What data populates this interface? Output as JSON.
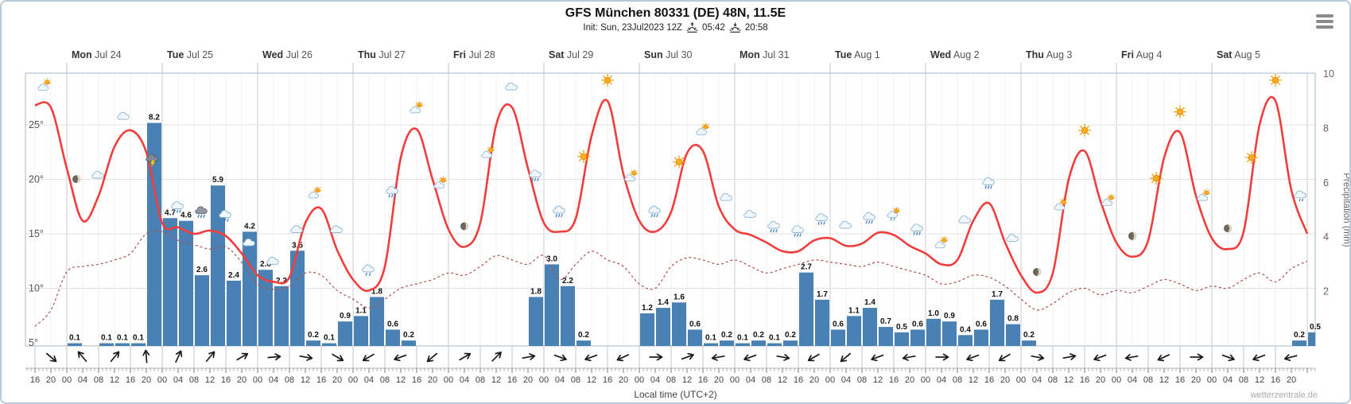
{
  "header": {
    "title": "GFS München 80331 (DE) 48N, 11.5E",
    "init": "Init: Sun, 23Jul2023 12Z",
    "sunrise": "05:42",
    "sunset": "20:58"
  },
  "footer": {
    "xlabel": "Local time (UTC+2)",
    "watermark": "wetterzentrale.de"
  },
  "axes": {
    "temp_ticks": [
      "25°",
      "20°",
      "15°",
      "10°",
      "5°"
    ],
    "precip_ticks": [
      "2",
      "4",
      "6",
      "8",
      "10"
    ],
    "precip_label": "Precipitation (mm)"
  },
  "chart_data": {
    "type": "meteogram line+bar",
    "title": "GFS München 80331 (DE) 48N, 11.5E",
    "x_start": "Jul 23 16:00",
    "x_step_hours": 4,
    "ylim_temp": [
      5,
      30
    ],
    "ylim_precip": [
      0,
      10
    ],
    "days": [
      {
        "name": "Mon",
        "date": "Jul 24"
      },
      {
        "name": "Tue",
        "date": "Jul 25"
      },
      {
        "name": "Wed",
        "date": "Jul 26"
      },
      {
        "name": "Thu",
        "date": "Jul 27"
      },
      {
        "name": "Fri",
        "date": "Jul 28"
      },
      {
        "name": "Sat",
        "date": "Jul 29"
      },
      {
        "name": "Sun",
        "date": "Jul 30"
      },
      {
        "name": "Mon",
        "date": "Jul 31"
      },
      {
        "name": "Tue",
        "date": "Aug 1"
      },
      {
        "name": "Wed",
        "date": "Aug 2"
      },
      {
        "name": "Thu",
        "date": "Aug 3"
      },
      {
        "name": "Fri",
        "date": "Aug 4"
      },
      {
        "name": "Sat",
        "date": "Aug 5"
      }
    ],
    "time_labels": [
      "16",
      "20",
      "00",
      "04",
      "08",
      "12",
      "16",
      "20",
      "00",
      "04",
      "08",
      "12",
      "16",
      "20",
      "00",
      "04",
      "08",
      "12",
      "16",
      "20",
      "00",
      "04",
      "08",
      "12",
      "16",
      "20",
      "00",
      "04",
      "08",
      "12",
      "16",
      "20",
      "00",
      "04",
      "08",
      "12",
      "16",
      "20",
      "00",
      "04",
      "08",
      "12",
      "16",
      "20",
      "00",
      "04",
      "08",
      "12",
      "16",
      "20",
      "00",
      "04",
      "08",
      "12",
      "16",
      "20",
      "00",
      "04",
      "08",
      "12",
      "16",
      "20",
      "00",
      "04",
      "08",
      "12",
      "16",
      "20",
      "00",
      "04",
      "08",
      "12",
      "16",
      "20",
      "00",
      "04",
      "08",
      "12",
      "16",
      "20"
    ],
    "temperature": [
      26.8,
      26.6,
      21.0,
      16.2,
      18.5,
      23.0,
      24.5,
      22.5,
      16.0,
      15.6,
      15.0,
      15.3,
      14.8,
      13.2,
      11.2,
      10.6,
      11.0,
      16.0,
      17.3,
      13.5,
      10.8,
      9.8,
      12.0,
      22.0,
      24.6,
      20.0,
      15.4,
      13.8,
      16.0,
      25.0,
      26.6,
      21.0,
      16.0,
      15.2,
      16.4,
      24.0,
      27.2,
      20.5,
      16.2,
      15.2,
      17.0,
      22.4,
      22.6,
      17.5,
      15.4,
      14.9,
      14.2,
      13.4,
      13.4,
      14.4,
      14.6,
      13.9,
      14.1,
      15.1,
      14.9,
      13.9,
      13.2,
      12.2,
      12.6,
      16.2,
      17.8,
      14.2,
      11.2,
      9.6,
      11.4,
      20.0,
      22.6,
      18.0,
      14.2,
      12.9,
      14.4,
      22.0,
      24.3,
      18.5,
      14.6,
      13.6,
      15.2,
      25.0,
      27.2,
      19.0,
      15.0
    ],
    "dewpoint": [
      6.5,
      8.0,
      11.5,
      12.0,
      12.2,
      12.6,
      13.2,
      15.0,
      15.2,
      14.4,
      14.0,
      13.6,
      13.8,
      12.4,
      10.4,
      9.9,
      10.2,
      11.4,
      11.2,
      9.8,
      9.0,
      8.2,
      9.0,
      10.0,
      10.4,
      10.8,
      11.4,
      11.2,
      12.0,
      13.0,
      12.6,
      12.2,
      13.0,
      10.8,
      12.2,
      13.4,
      12.6,
      12.0,
      10.4,
      10.0,
      12.0,
      12.8,
      12.6,
      12.2,
      12.6,
      12.0,
      11.4,
      11.8,
      12.2,
      12.6,
      12.4,
      12.2,
      12.0,
      12.4,
      12.0,
      11.6,
      11.2,
      10.4,
      10.6,
      11.2,
      11.0,
      10.2,
      9.0,
      8.0,
      8.6,
      9.6,
      10.0,
      9.4,
      9.8,
      9.6,
      10.2,
      10.8,
      10.4,
      9.8,
      10.2,
      10.0,
      10.8,
      11.4,
      10.6,
      11.8,
      12.5
    ],
    "precip_bars": [
      {
        "t": 2,
        "v": 0.1
      },
      {
        "t": 4,
        "v": 0.1
      },
      {
        "t": 5,
        "v": 0.1
      },
      {
        "t": 6,
        "v": 0.1
      },
      {
        "t": 7,
        "v": 8.2
      },
      {
        "t": 8,
        "v": 4.7
      },
      {
        "t": 9,
        "v": 4.6
      },
      {
        "t": 10,
        "v": 2.6
      },
      {
        "t": 11,
        "v": 5.9
      },
      {
        "t": 12,
        "v": 2.4
      },
      {
        "t": 13,
        "v": 4.2
      },
      {
        "t": 14,
        "v": 2.8
      },
      {
        "t": 15,
        "v": 2.2
      },
      {
        "t": 16,
        "v": 3.5
      },
      {
        "t": 17,
        "v": 0.2
      },
      {
        "t": 18,
        "v": 0.1
      },
      {
        "t": 19,
        "v": 0.9
      },
      {
        "t": 20,
        "v": 1.1
      },
      {
        "t": 21,
        "v": 1.8
      },
      {
        "t": 22,
        "v": 0.6
      },
      {
        "t": 23,
        "v": 0.2
      },
      {
        "t": 31,
        "v": 1.8
      },
      {
        "t": 32,
        "v": 3.0
      },
      {
        "t": 33,
        "v": 2.2
      },
      {
        "t": 34,
        "v": 0.2
      },
      {
        "t": 38,
        "v": 1.2
      },
      {
        "t": 39,
        "v": 1.4
      },
      {
        "t": 40,
        "v": 1.6
      },
      {
        "t": 41,
        "v": 0.6
      },
      {
        "t": 42,
        "v": 0.1
      },
      {
        "t": 43,
        "v": 0.2
      },
      {
        "t": 44,
        "v": 0.1
      },
      {
        "t": 45,
        "v": 0.2
      },
      {
        "t": 46,
        "v": 0.1
      },
      {
        "t": 47,
        "v": 0.2
      },
      {
        "t": 48,
        "v": 2.7
      },
      {
        "t": 49,
        "v": 1.7
      },
      {
        "t": 50,
        "v": 0.6
      },
      {
        "t": 51,
        "v": 1.1
      },
      {
        "t": 52,
        "v": 1.4
      },
      {
        "t": 53,
        "v": 0.7
      },
      {
        "t": 54,
        "v": 0.5
      },
      {
        "t": 55,
        "v": 0.6
      },
      {
        "t": 56,
        "v": 1.0
      },
      {
        "t": 57,
        "v": 0.9
      },
      {
        "t": 58,
        "v": 0.4
      },
      {
        "t": 59,
        "v": 0.6
      },
      {
        "t": 60,
        "v": 1.7
      },
      {
        "t": 61,
        "v": 0.8
      },
      {
        "t": 62,
        "v": 0.2
      },
      {
        "t": 79,
        "v": 0.2
      },
      {
        "t": 80,
        "v": 0.5
      }
    ],
    "icons": [
      {
        "t": 0.6,
        "type": "sun-cloud"
      },
      {
        "t": 2.6,
        "type": "moon"
      },
      {
        "t": 4,
        "type": "cloud"
      },
      {
        "t": 5.6,
        "type": "cloud"
      },
      {
        "t": 7.4,
        "type": "thunder"
      },
      {
        "t": 9,
        "type": "rain"
      },
      {
        "t": 10.5,
        "type": "heavy-rain"
      },
      {
        "t": 12,
        "type": "rain"
      },
      {
        "t": 13.5,
        "type": "rain"
      },
      {
        "t": 15,
        "type": "cloud"
      },
      {
        "t": 16.5,
        "type": "cloud"
      },
      {
        "t": 17.6,
        "type": "sun-cloud"
      },
      {
        "t": 19,
        "type": "cloud"
      },
      {
        "t": 21,
        "type": "rain-light"
      },
      {
        "t": 22.5,
        "type": "rain"
      },
      {
        "t": 24,
        "type": "sun-cloud"
      },
      {
        "t": 25.5,
        "type": "sun-cloud"
      },
      {
        "t": 27,
        "type": "moon"
      },
      {
        "t": 28.5,
        "type": "sun-cloud"
      },
      {
        "t": 30,
        "type": "cloud"
      },
      {
        "t": 31.5,
        "type": "rain"
      },
      {
        "t": 33,
        "type": "rain"
      },
      {
        "t": 34.5,
        "type": "sun"
      },
      {
        "t": 36,
        "type": "sun"
      },
      {
        "t": 37.5,
        "type": "sun-cloud"
      },
      {
        "t": 39,
        "type": "rain"
      },
      {
        "t": 40.5,
        "type": "sun"
      },
      {
        "t": 42,
        "type": "sun-cloud"
      },
      {
        "t": 43.5,
        "type": "cloud"
      },
      {
        "t": 45,
        "type": "cloud"
      },
      {
        "t": 46.5,
        "type": "rain"
      },
      {
        "t": 48,
        "type": "rain"
      },
      {
        "t": 49.5,
        "type": "rain"
      },
      {
        "t": 51,
        "type": "cloud"
      },
      {
        "t": 52.5,
        "type": "rain"
      },
      {
        "t": 54,
        "type": "sun-rain"
      },
      {
        "t": 55.5,
        "type": "rain"
      },
      {
        "t": 57,
        "type": "sun-cloud"
      },
      {
        "t": 58.5,
        "type": "cloud"
      },
      {
        "t": 60,
        "type": "rain"
      },
      {
        "t": 61.5,
        "type": "cloud"
      },
      {
        "t": 63,
        "type": "moon"
      },
      {
        "t": 64.5,
        "type": "sun-cloud"
      },
      {
        "t": 66,
        "type": "sun"
      },
      {
        "t": 67.5,
        "type": "sun-cloud"
      },
      {
        "t": 69,
        "type": "moon"
      },
      {
        "t": 70.5,
        "type": "sun"
      },
      {
        "t": 72,
        "type": "sun"
      },
      {
        "t": 73.5,
        "type": "sun-cloud"
      },
      {
        "t": 75,
        "type": "moon"
      },
      {
        "t": 76.5,
        "type": "sun"
      },
      {
        "t": 78,
        "type": "sun"
      },
      {
        "t": 79.6,
        "type": "cloud-rain"
      }
    ],
    "wind_dirs_deg": [
      130,
      320,
      40,
      355,
      25,
      40,
      60,
      85,
      100,
      120,
      240,
      250,
      230,
      60,
      45,
      80,
      110,
      250,
      245,
      90,
      70,
      260,
      250,
      100,
      240,
      230,
      250,
      260,
      90,
      250,
      240,
      100,
      80,
      250,
      260,
      245,
      90,
      110,
      250,
      255
    ],
    "colors": {
      "temp": "#f23d3d",
      "dewpoint": "#a8524e",
      "bar": "#4a81b4",
      "grid": "#ececec",
      "day_grid": "#c9ced3",
      "border": "#a9bac7"
    }
  }
}
